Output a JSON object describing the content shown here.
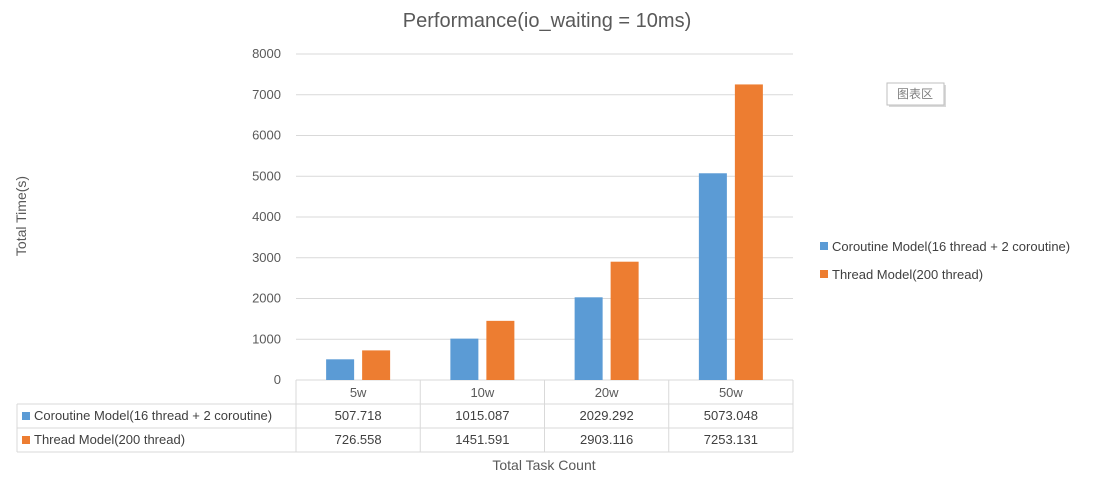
{
  "chart_data": {
    "type": "bar",
    "title": "Performance(io_waiting = 10ms)",
    "xlabel": "Total Task Count",
    "ylabel": "Total Time(s)",
    "ylim": [
      0,
      8000
    ],
    "yticks": [
      0,
      1000,
      2000,
      3000,
      4000,
      5000,
      6000,
      7000,
      8000
    ],
    "categories": [
      "5w",
      "10w",
      "20w",
      "50w"
    ],
    "series": [
      {
        "name": "Coroutine Model(16 thread + 2 coroutine)",
        "color": "#5B9BD5",
        "values": [
          507.718,
          1015.087,
          2029.292,
          5073.048
        ],
        "labels": [
          "507.718",
          "1015.087",
          "2029.292",
          "5073.048"
        ]
      },
      {
        "name": "Thread Model(200 thread)",
        "color": "#ED7D31",
        "values": [
          726.558,
          1451.591,
          2903.116,
          7253.131
        ],
        "labels": [
          "726.558",
          "1451.591",
          "2903.116",
          "7253.131"
        ]
      }
    ],
    "grid": true,
    "legend_position": "right",
    "data_table": true
  },
  "badge": {
    "text": "图表区"
  }
}
